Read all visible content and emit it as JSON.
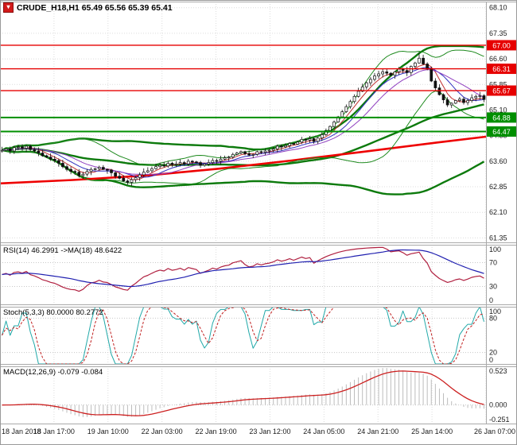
{
  "chart_data": {
    "type": "candlestick",
    "symbol": "CRUDE_H18",
    "timeframe": "H1",
    "title": "CRUDE_H18,H1 65.49 65.56 65.39 65.41",
    "quote": {
      "open": "65.49",
      "high": "65.56",
      "low": "65.39",
      "close": "65.41"
    },
    "x_labels": [
      "18 Jan 2018",
      "18 Jan 17:00",
      "19 Jan 10:00",
      "22 Jan 03:00",
      "22 Jan 19:00",
      "23 Jan 12:00",
      "24 Jan 05:00",
      "24 Jan 21:00",
      "25 Jan 14:00",
      "26 Jan 07:00"
    ],
    "price_ticks": [
      {
        "label": "68.10",
        "value": 68.1
      },
      {
        "label": "67.35",
        "value": 67.35
      },
      {
        "label": "66.60",
        "value": 66.6
      },
      {
        "label": "65.85",
        "value": 65.85
      },
      {
        "label": "65.10",
        "value": 65.1
      },
      {
        "label": "64.35",
        "value": 64.35
      },
      {
        "label": "63.60",
        "value": 63.6
      },
      {
        "label": "62.85",
        "value": 62.85
      },
      {
        "label": "62.10",
        "value": 62.1
      },
      {
        "label": "61.35",
        "value": 61.35
      }
    ],
    "price_range": {
      "min": 61.22,
      "max": 68.28
    },
    "levels": [
      {
        "label": "67.00",
        "value": 67.0,
        "color": "#e60000",
        "width": 1.4
      },
      {
        "label": "66.31",
        "value": 66.31,
        "color": "#e60000",
        "width": 1.4
      },
      {
        "label": "65.67",
        "value": 65.67,
        "color": "#e60000",
        "width": 1.4
      },
      {
        "label": "64.88",
        "value": 64.88,
        "color": "#008f00",
        "width": 2.0
      },
      {
        "label": "64.47",
        "value": 64.47,
        "color": "#008f00",
        "width": 2.0
      }
    ],
    "closes": [
      63.92,
      63.96,
      63.9,
      64.0,
      64.02,
      63.98,
      64.04,
      63.94,
      63.9,
      63.84,
      63.76,
      63.72,
      63.66,
      63.62,
      63.54,
      63.44,
      63.36,
      63.3,
      63.28,
      63.18,
      63.22,
      63.3,
      63.36,
      63.38,
      63.42,
      63.36,
      63.34,
      63.26,
      63.16,
      63.1,
      63.02,
      62.98,
      63.06,
      63.12,
      63.2,
      63.28,
      63.32,
      63.38,
      63.44,
      63.48,
      63.46,
      63.54,
      63.5,
      63.52,
      63.56,
      63.52,
      63.6,
      63.58,
      63.56,
      63.48,
      63.52,
      63.56,
      63.62,
      63.6,
      63.66,
      63.7,
      63.72,
      63.8,
      63.84,
      63.88,
      63.82,
      63.78,
      63.8,
      63.88,
      63.86,
      63.9,
      63.92,
      63.96,
      64.04,
      64.02,
      64.06,
      64.12,
      64.1,
      64.16,
      64.24,
      64.22,
      64.26,
      64.18,
      64.28,
      64.38,
      64.5,
      64.62,
      64.75,
      64.9,
      65.05,
      65.2,
      65.35,
      65.5,
      65.65,
      65.78,
      65.9,
      66.0,
      66.1,
      66.16,
      66.22,
      66.18,
      66.12,
      66.22,
      66.3,
      66.26,
      66.2,
      66.38,
      66.48,
      66.62,
      66.45,
      66.3,
      65.95,
      65.75,
      65.55,
      65.4,
      65.25,
      65.3,
      65.38,
      65.42,
      65.32,
      65.38,
      65.46,
      65.5,
      65.52,
      65.41
    ],
    "spike_bar": 103,
    "slow_ma_points": [
      [
        0,
        62.95
      ],
      [
        0.15,
        63.05
      ],
      [
        0.3,
        63.18
      ],
      [
        0.45,
        63.38
      ],
      [
        0.6,
        63.62
      ],
      [
        0.75,
        63.88
      ],
      [
        0.9,
        64.15
      ],
      [
        1,
        64.32
      ]
    ],
    "overlays": {
      "bb_fast": {
        "period": 20,
        "dev": 2
      },
      "bb_slow": {
        "period": 55,
        "dev": 2
      },
      "ma_periods": [
        5,
        9,
        14
      ]
    },
    "indicators": {
      "rsi": {
        "label": "RSI(14) 46.2991 ->MA(18) 48.6422",
        "period": 14,
        "ma_period": 18,
        "ticks": [
          {
            "label": "100",
            "value": 100
          },
          {
            "label": "70",
            "value": 70
          },
          {
            "label": "30",
            "value": 30
          },
          {
            "label": "0",
            "value": 0
          }
        ],
        "guides": [
          70,
          30
        ]
      },
      "stoch": {
        "label": "Stoch(5,3,3) 80.0000 80.2772",
        "ticks": [
          {
            "label": "100",
            "value": 100
          },
          {
            "label": "80",
            "value": 80
          },
          {
            "label": "20",
            "value": 20
          },
          {
            "label": "0",
            "value": 0
          }
        ],
        "guides": [
          80,
          20
        ]
      },
      "macd": {
        "label": "MACD(12,26,9) -0.079 -0.084",
        "range": [
          -0.251,
          0.523
        ],
        "ticks": [
          {
            "label": "0.523",
            "value": 0.523
          },
          {
            "label": "0.000",
            "value": 0
          },
          {
            "label": "-0.251",
            "value": -0.251
          }
        ]
      }
    },
    "colors": {
      "bg": "#ffffff",
      "frame": "#a9a9a9",
      "grid": "#dcdcdc",
      "candle": "#111111",
      "candle_up_fill": "#ffffff",
      "bb_fast": "#1e8a1e",
      "bb_slow": "#0c7a0c",
      "slow_ma": "#ee0000",
      "ma1": "#c03030",
      "ma2": "#3030c0",
      "ma3": "#9040c0",
      "rsi": "#b02040",
      "rsi_ma": "#2020b0",
      "stoch_k": "#1fa8a8",
      "stoch_d": "#c02020",
      "macd_hist": "#bcbcbc",
      "macd_line": "#cc2020",
      "axis_text": "#1a1a1a",
      "badge_text": "#ffffff"
    }
  }
}
